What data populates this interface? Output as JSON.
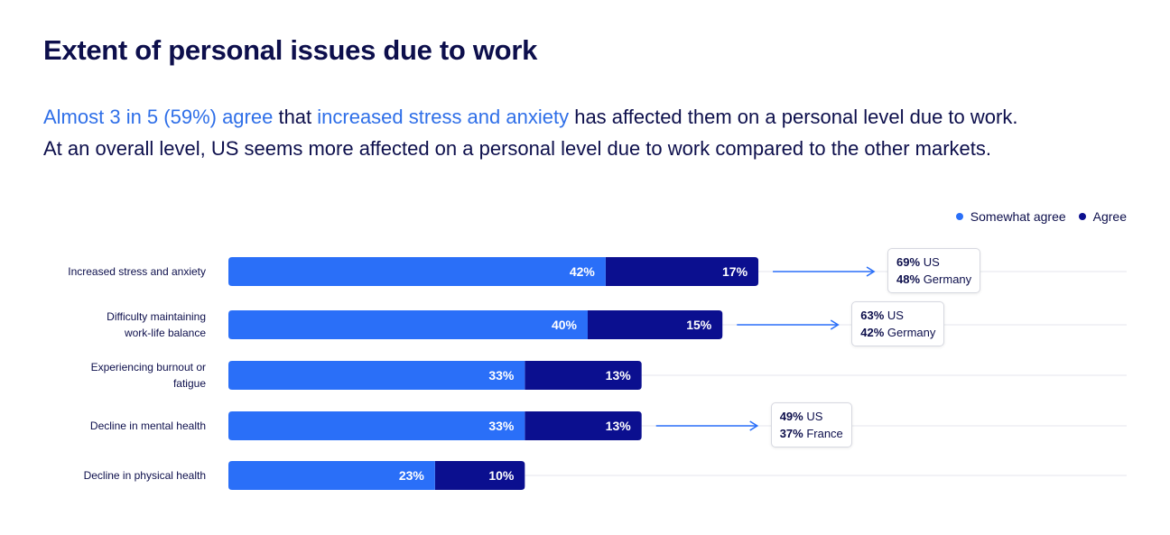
{
  "title": "Extent of personal issues due to work",
  "subtitle": {
    "line1": [
      {
        "text": "Almost 3 in 5 (59%) agree",
        "highlight": true
      },
      {
        "text": " that ",
        "highlight": false
      },
      {
        "text": "increased stress and anxiety",
        "highlight": true
      },
      {
        "text": " has affected them on a personal level due to work.",
        "highlight": false
      }
    ],
    "line2": "At an overall level, US seems more affected on a personal level due to work compared to the other markets."
  },
  "colors": {
    "somewhat_agree": "#2a6ff8",
    "agree": "#0b0f8f",
    "title": "#0d0f4c",
    "highlight": "#2f6fe8",
    "arrow": "#2a6ff8",
    "gridline": "#e4e6ec"
  },
  "chart_data": {
    "type": "bar",
    "orientation": "horizontal",
    "stacked": true,
    "categories": [
      "Increased stress and anxiety",
      "Difficulty maintaining work-life balance",
      "Experiencing burnout or fatigue",
      "Decline in mental health",
      "Decline in physical health"
    ],
    "series": [
      {
        "name": "Somewhat agree",
        "values": [
          42,
          40,
          33,
          33,
          23
        ],
        "labels": [
          "42%",
          "40%",
          "33%",
          "33%",
          "23%"
        ]
      },
      {
        "name": "Agree",
        "values": [
          17,
          15,
          13,
          13,
          10
        ],
        "labels": [
          "17%",
          "15%",
          "13%",
          "13%",
          "10%"
        ]
      }
    ],
    "legend_position": "top-right",
    "grid": true,
    "callouts": [
      {
        "category_index": 0,
        "items": [
          {
            "value": "69%",
            "label": "US"
          },
          {
            "value": "48%",
            "label": "Germany"
          }
        ]
      },
      {
        "category_index": 1,
        "items": [
          {
            "value": "63%",
            "label": "US"
          },
          {
            "value": "42%",
            "label": "Germany"
          }
        ]
      },
      {
        "category_index": 3,
        "items": [
          {
            "value": "49%",
            "label": "US"
          },
          {
            "value": "37%",
            "label": "France"
          }
        ]
      }
    ]
  }
}
